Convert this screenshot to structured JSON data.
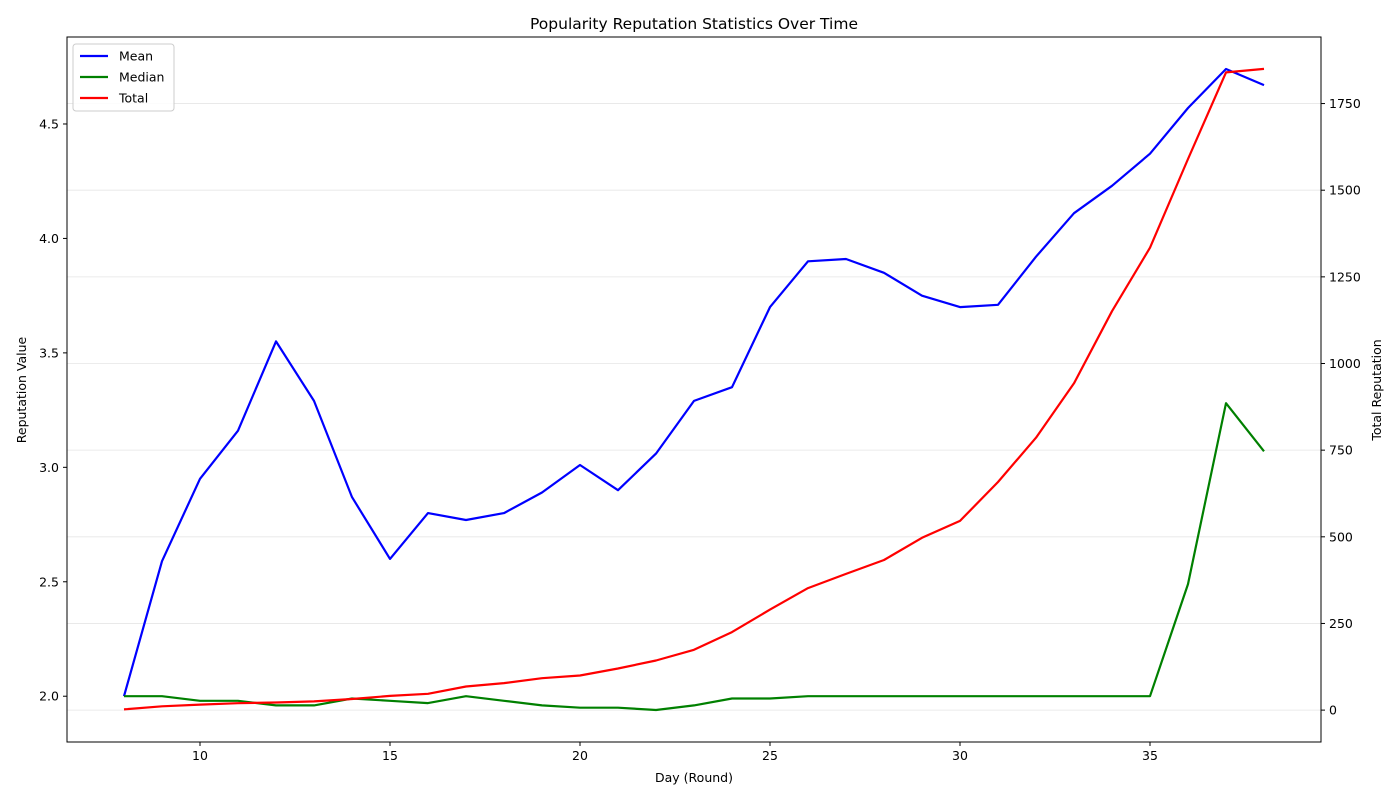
{
  "chart_data": {
    "type": "line",
    "title": "Popularity Reputation Statistics Over Time",
    "xlabel": "Day (Round)",
    "ylabel_left": "Reputation Value",
    "ylabel_right": "Total Reputation",
    "xlim": [
      6.5,
      39.5
    ],
    "ylim_left": [
      1.8,
      4.88
    ],
    "ylim_right": [
      -92,
      1942
    ],
    "x_ticks": [
      10,
      15,
      20,
      25,
      30,
      35
    ],
    "y_left_ticks": [
      2.0,
      2.5,
      3.0,
      3.5,
      4.0,
      4.5
    ],
    "y_right_ticks": [
      0,
      250,
      500,
      750,
      1000,
      1250,
      1500,
      1750
    ],
    "grid": "horizontal (right axis)",
    "legend_position": "upper-left",
    "x": [
      8,
      9,
      10,
      11,
      12,
      13,
      14,
      15,
      16,
      17,
      18,
      19,
      20,
      21,
      22,
      23,
      24,
      25,
      26,
      27,
      28,
      29,
      30,
      31,
      32,
      33,
      34,
      35,
      36,
      37,
      38
    ],
    "series": [
      {
        "name": "Mean",
        "axis": "left",
        "color": "#0000ff",
        "values": [
          2.0,
          2.59,
          2.95,
          3.16,
          3.55,
          3.29,
          2.87,
          2.6,
          2.8,
          2.77,
          2.8,
          2.89,
          3.01,
          2.9,
          3.06,
          3.29,
          3.35,
          3.7,
          3.9,
          3.91,
          3.85,
          3.75,
          3.7,
          3.71,
          3.92,
          4.11,
          4.23,
          4.37,
          4.57,
          4.74,
          4.67
        ]
      },
      {
        "name": "Median",
        "axis": "left",
        "color": "#008000",
        "values": [
          2.0,
          2.0,
          1.98,
          1.98,
          1.96,
          1.96,
          1.99,
          1.98,
          1.97,
          2.0,
          1.98,
          1.96,
          1.95,
          1.95,
          1.94,
          1.96,
          1.99,
          1.99,
          2.0,
          2.0,
          2.0,
          2.0,
          2.0,
          2.0,
          2.0,
          2.0,
          2.0,
          2.0,
          2.49,
          3.28,
          3.07
        ]
      },
      {
        "name": "Total",
        "axis": "right",
        "color": "#ff0000",
        "values": [
          2,
          11,
          16,
          20,
          22,
          25,
          32,
          41,
          47,
          68,
          78,
          92,
          100,
          120,
          143,
          174,
          225,
          290,
          352,
          393,
          433,
          497,
          546,
          658,
          786,
          943,
          1151,
          1334,
          1590,
          1840,
          1850
        ]
      }
    ]
  }
}
